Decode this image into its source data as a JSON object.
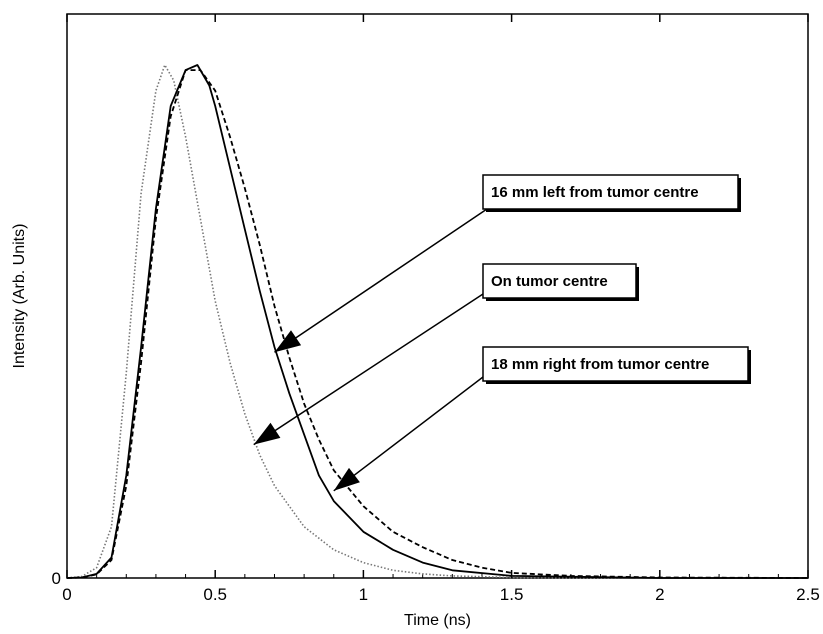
{
  "chart_data": {
    "type": "line",
    "xlabel": "Time (ns)",
    "ylabel": "Intensity (Arb. Units)",
    "xlim": [
      0,
      2.5
    ],
    "ylim": [
      0,
      1.0
    ],
    "x_ticks": [
      "0",
      "0.5",
      "1",
      "1.5",
      "2",
      "2.5"
    ],
    "y_ticks": [
      "0"
    ],
    "grid": false,
    "legend": "none",
    "series": [
      {
        "style": "dotted",
        "color": "#777777",
        "x": [
          0,
          0.05,
          0.1,
          0.15,
          0.2,
          0.25,
          0.3,
          0.33,
          0.36,
          0.4,
          0.45,
          0.5,
          0.55,
          0.6,
          0.65,
          0.7,
          0.8,
          0.9,
          1.0,
          1.1,
          1.2,
          1.3,
          1.5,
          2.0,
          2.5
        ],
        "y": [
          0,
          0.003,
          0.02,
          0.1,
          0.4,
          0.75,
          0.95,
          1.0,
          0.97,
          0.86,
          0.7,
          0.54,
          0.42,
          0.32,
          0.24,
          0.18,
          0.1,
          0.055,
          0.03,
          0.015,
          0.008,
          0.004,
          0.001,
          0,
          0
        ]
      },
      {
        "style": "solid",
        "color": "#000000",
        "x": [
          0,
          0.05,
          0.1,
          0.15,
          0.2,
          0.25,
          0.3,
          0.35,
          0.4,
          0.44,
          0.48,
          0.5,
          0.55,
          0.6,
          0.65,
          0.7,
          0.75,
          0.8,
          0.85,
          0.9,
          1.0,
          1.1,
          1.2,
          1.3,
          1.5,
          2.0,
          2.5
        ],
        "y": [
          0,
          0.001,
          0.008,
          0.04,
          0.2,
          0.45,
          0.72,
          0.92,
          0.99,
          1.0,
          0.96,
          0.92,
          0.8,
          0.68,
          0.56,
          0.45,
          0.36,
          0.28,
          0.2,
          0.15,
          0.09,
          0.055,
          0.03,
          0.015,
          0.004,
          0,
          0
        ]
      },
      {
        "style": "dashed",
        "color": "#000000",
        "x": [
          0,
          0.05,
          0.1,
          0.15,
          0.2,
          0.25,
          0.3,
          0.35,
          0.4,
          0.45,
          0.5,
          0.55,
          0.6,
          0.65,
          0.7,
          0.75,
          0.8,
          0.85,
          0.9,
          1.0,
          1.1,
          1.2,
          1.3,
          1.4,
          1.5,
          1.7,
          2.0,
          2.5
        ],
        "y": [
          0,
          0.001,
          0.007,
          0.035,
          0.18,
          0.42,
          0.7,
          0.9,
          0.99,
          0.99,
          0.95,
          0.86,
          0.76,
          0.65,
          0.53,
          0.43,
          0.34,
          0.27,
          0.21,
          0.14,
          0.09,
          0.06,
          0.035,
          0.02,
          0.01,
          0.004,
          0.001,
          0
        ]
      }
    ],
    "annotations": [
      {
        "text": "16 mm left from tumor centre",
        "target_x": 0.7,
        "target_y": 0.44,
        "box": [
          0.41,
          0.295
        ],
        "target": [
          0.34,
          0.558
        ]
      },
      {
        "text": "On tumor centre",
        "target_x": 0.63,
        "target_y": 0.26,
        "box": [
          0.41,
          0.45
        ],
        "target": [
          0.313,
          0.7
        ]
      },
      {
        "text": "18 mm right from tumor centre",
        "target_x": 0.9,
        "target_y": 0.17,
        "box": [
          0.41,
          0.58
        ],
        "target": [
          0.41,
          0.77
        ]
      }
    ]
  }
}
